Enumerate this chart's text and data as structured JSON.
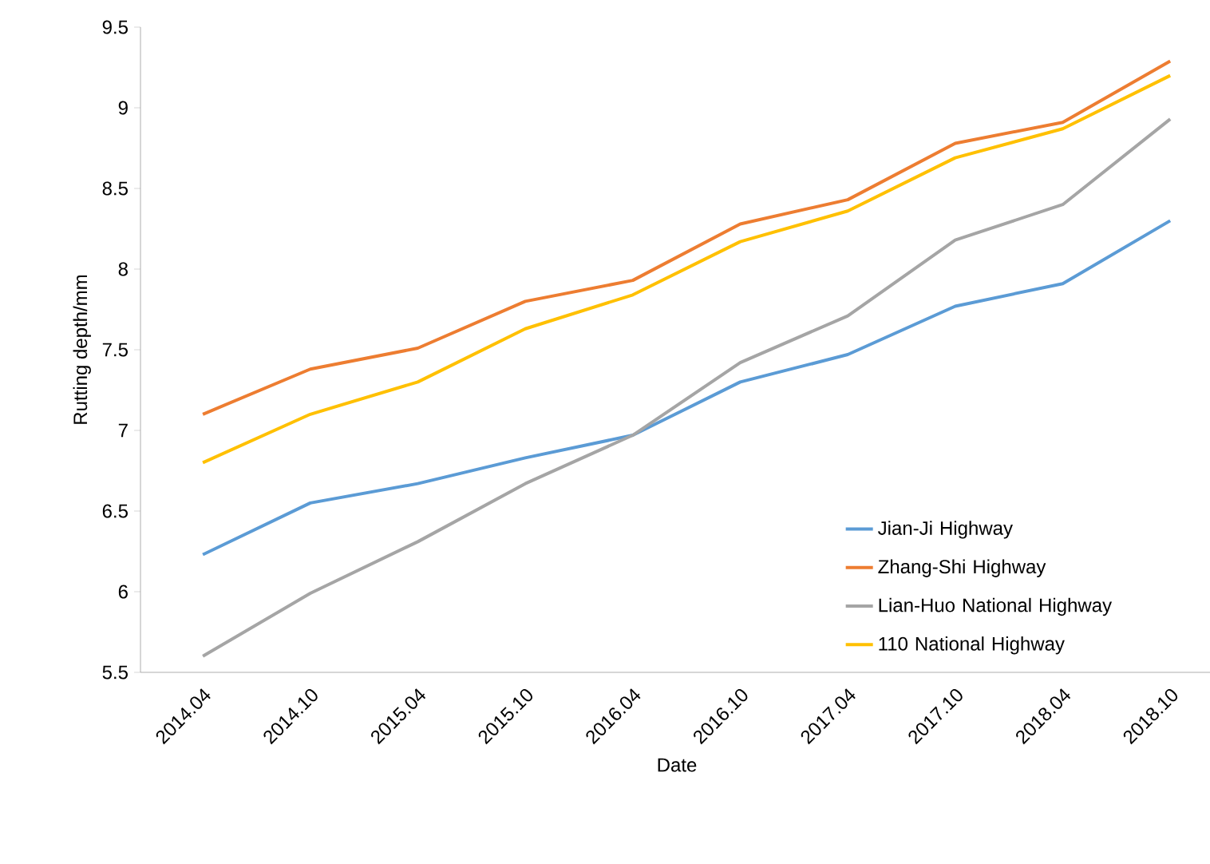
{
  "chart_data": {
    "type": "line",
    "xlabel": "Date",
    "ylabel": "Rutting depth/mm",
    "categories": [
      "2014.04",
      "2014.10",
      "2015.04",
      "2015.10",
      "2016.04",
      "2016.10",
      "2017.04",
      "2017.10",
      "2018.04",
      "2018.10"
    ],
    "series": [
      {
        "name": "Jian-Ji Highway",
        "color": "#5b9bd5",
        "values": [
          6.23,
          6.55,
          6.67,
          6.83,
          6.97,
          7.3,
          7.47,
          7.77,
          7.91,
          8.3
        ]
      },
      {
        "name": "Zhang-Shi Highway",
        "color": "#ed7d31",
        "values": [
          7.1,
          7.38,
          7.51,
          7.8,
          7.93,
          8.28,
          8.43,
          8.78,
          8.91,
          9.29
        ]
      },
      {
        "name": "Lian-Huo National Highway",
        "color": "#a5a5a5",
        "values": [
          5.6,
          5.99,
          6.31,
          6.67,
          6.97,
          7.42,
          7.71,
          8.18,
          8.4,
          8.93
        ]
      },
      {
        "name": "110 National Highway",
        "color": "#ffc000",
        "values": [
          6.8,
          7.1,
          7.3,
          7.63,
          7.84,
          8.17,
          8.36,
          8.69,
          8.87,
          9.2
        ]
      }
    ],
    "ylim": [
      5.5,
      9.5
    ],
    "yticks": [
      5.5,
      6,
      6.5,
      7,
      7.5,
      8,
      8.5,
      9,
      9.5
    ],
    "grid": false,
    "legend": "bottom right",
    "marker": "none",
    "line_style": "solid"
  }
}
